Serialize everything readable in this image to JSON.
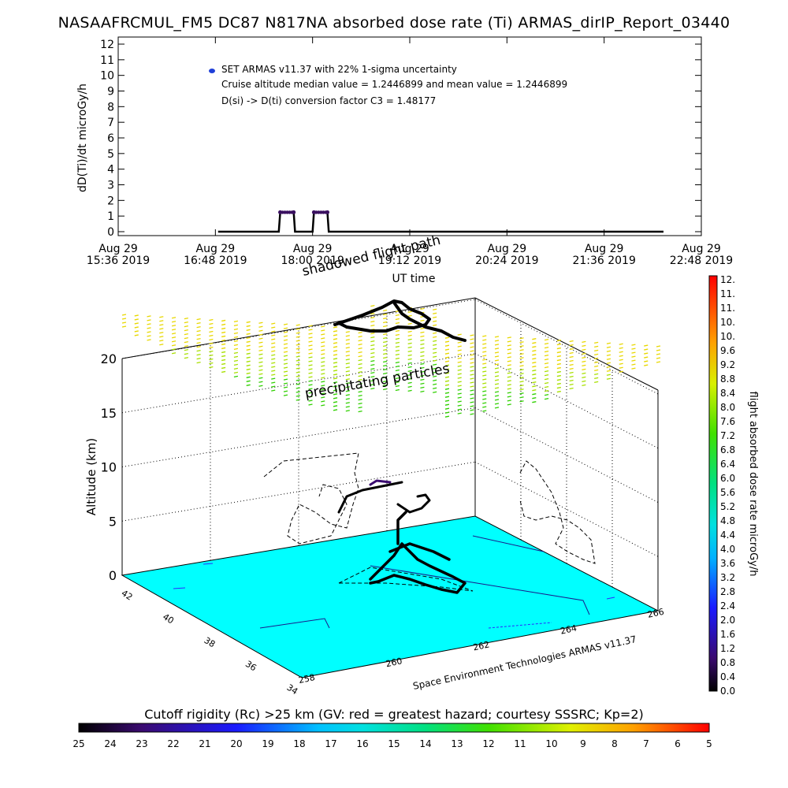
{
  "title": "NASAAFRCMUL_FM5 DC87 N817NA absorbed dose rate (Ti) ARMAS_dirIP_Report_03440",
  "top_chart": {
    "ylabel": "dD(Ti)/dt microGy/h",
    "xlabel": "UT time",
    "legend_lines": [
      "SET ARMAS v11.37 with 22% 1-sigma uncertainty",
      "Cruise altitude median value = 1.2446899 and mean value = 1.2446899",
      "D(si) -> D(ti) conversion factor C3 = 1.48177"
    ],
    "legend_marker_color": "#1f3fd8",
    "y_ticks": [
      "0",
      "1",
      "2",
      "3",
      "4",
      "5",
      "6",
      "7",
      "8",
      "9",
      "10",
      "11",
      "12"
    ],
    "x_ticks_line1": [
      "Aug 29",
      "Aug 29",
      "Aug 29",
      "Aug 29",
      "Aug 29",
      "Aug 29",
      "Aug 29"
    ],
    "x_ticks_line2": [
      "15:36 2019",
      "16:48 2019",
      "18:00 2019",
      "19:12 2019",
      "20:24 2019",
      "21:36 2019",
      "22:48 2019"
    ]
  },
  "chart_data": [
    {
      "type": "line",
      "title": "NASAAFRCMUL_FM5 DC87 N817NA absorbed dose rate (Ti) ARMAS_dirIP_Report_03440",
      "xlabel": "UT time",
      "ylabel": "dD(Ti)/dt microGy/h",
      "ylim": [
        0,
        12
      ],
      "xlim": [
        "15:36",
        "22:48"
      ],
      "series": [
        {
          "name": "SET ARMAS v11.37 with 22% 1-sigma uncertainty",
          "color": "#3a1060",
          "points": [
            [
              "16:50",
              0
            ],
            [
              "17:35",
              0
            ],
            [
              "17:36",
              1.24
            ],
            [
              "17:46",
              1.24
            ],
            [
              "17:47",
              0
            ],
            [
              "18:00",
              0
            ],
            [
              "18:01",
              1.24
            ],
            [
              "18:11",
              1.24
            ],
            [
              "18:12",
              0
            ],
            [
              "22:20",
              0
            ]
          ]
        }
      ]
    },
    {
      "type": "scatter",
      "title": "",
      "zlabel": "Altitude (km)",
      "z_ticks": [
        "0",
        "5",
        "10",
        "15",
        "20"
      ],
      "lat_ticks": [
        "42",
        "40",
        "38",
        "36",
        "34"
      ],
      "lon_ticks": [
        "258",
        "260",
        "262",
        "264",
        "266"
      ],
      "annotations": [
        "shadowed flight path",
        "precipitating particles"
      ],
      "credit": "Space Environment Technologies ARMAS v11.37"
    }
  ],
  "colorbar_right": {
    "label": "flight absorbed dose rate microGy/h",
    "ticks": [
      "12.",
      "11.",
      "11.",
      "10.",
      "10.",
      "9.6",
      "9.2",
      "8.8",
      "8.4",
      "8.0",
      "7.6",
      "7.2",
      "6.8",
      "6.4",
      "6.0",
      "5.6",
      "5.2",
      "4.8",
      "4.4",
      "4.0",
      "3.6",
      "3.2",
      "2.8",
      "2.4",
      "2.0",
      "1.6",
      "1.2",
      "0.8",
      "0.4",
      "0.0"
    ]
  },
  "colorbar_bottom": {
    "title": "Cutoff rigidity (Rc) >25 km (GV: red = greatest hazard; courtesy SSSRC; Kp=2)",
    "ticks": [
      "25",
      "24",
      "23",
      "22",
      "21",
      "20",
      "19",
      "18",
      "17",
      "16",
      "15",
      "14",
      "13",
      "12",
      "11",
      "10",
      "9",
      "8",
      "7",
      "6",
      "5"
    ]
  },
  "colors": {
    "ground": "#00ffff",
    "path": "#000000"
  }
}
